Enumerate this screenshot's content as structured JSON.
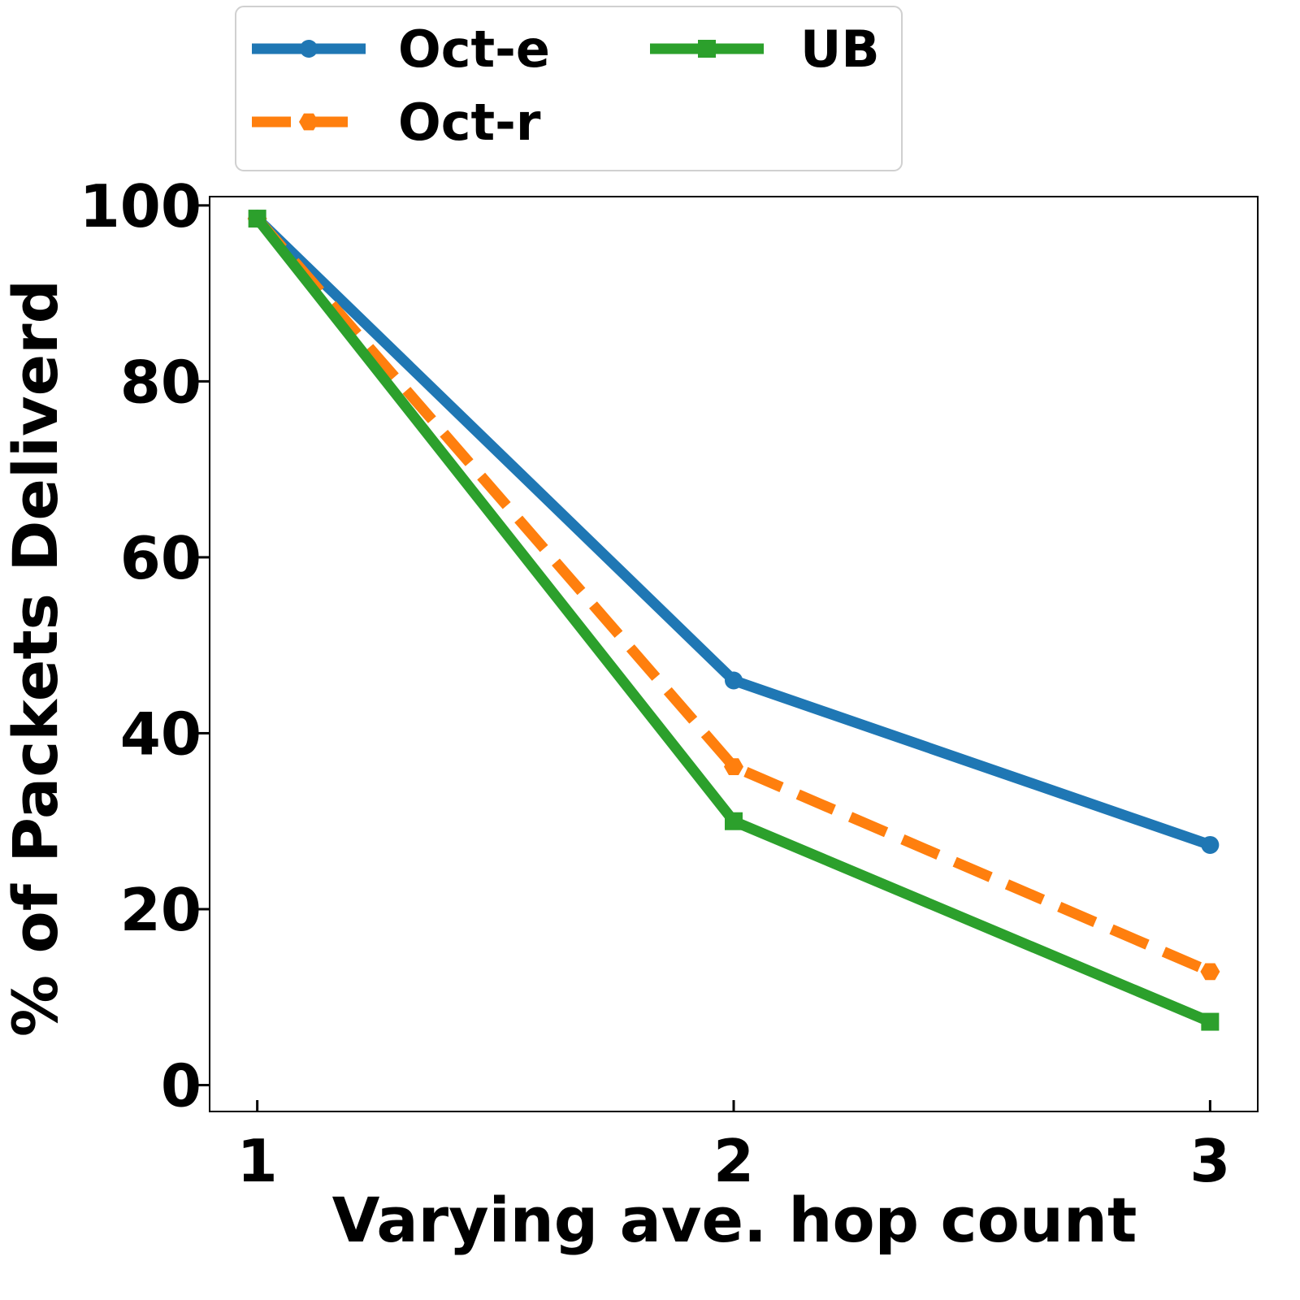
{
  "chart_data": {
    "type": "line",
    "title": "",
    "xlabel": "Varying ave. hop count",
    "ylabel": "% of Packets Deliverd",
    "x": [
      1,
      2,
      3
    ],
    "xticks": [
      1,
      2,
      3
    ],
    "xlim": [
      0.9,
      3.1
    ],
    "yticks": [
      0,
      20,
      40,
      60,
      80,
      100
    ],
    "ylim": [
      -3,
      101
    ],
    "grid": false,
    "legend": {
      "placement": "top",
      "columns": 2
    },
    "series": [
      {
        "name": "Oct-e",
        "values": [
          98.5,
          46.0,
          27.3
        ],
        "color": "#1f77b4",
        "marker": "circle",
        "dash": "solid"
      },
      {
        "name": "Oct-r",
        "values": [
          98.5,
          36.2,
          12.9
        ],
        "color": "#ff7f0e",
        "marker": "hexagon",
        "dash": "dashed"
      },
      {
        "name": "UB",
        "values": [
          98.5,
          30.0,
          7.2
        ],
        "color": "#2ca02c",
        "marker": "square",
        "dash": "solid"
      }
    ]
  }
}
